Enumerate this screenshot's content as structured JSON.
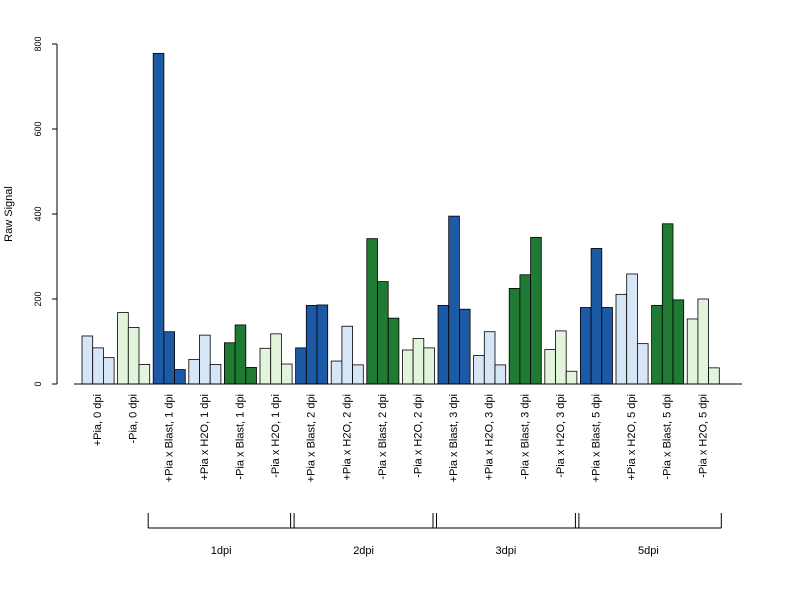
{
  "chart_data": {
    "type": "bar",
    "ylabel": "Raw Signal",
    "xlabel": "",
    "ylim": [
      0,
      800
    ],
    "yticks": [
      0,
      200,
      400,
      600,
      800
    ],
    "categories": [
      "+Pia, 0 dpi",
      "-Pia, 0 dpi",
      "+Pia x Blast, 1 dpi",
      "+Pia x H2O, 1 dpi",
      "-Pia x Blast, 1 dpi",
      "-Pia x H2O, 1 dpi",
      "+Pia x Blast, 2 dpi",
      "+Pia x H2O, 2 dpi",
      "-Pia x Blast, 2 dpi",
      "-Pia x H2O, 2 dpi",
      "+Pia x Blast, 3 dpi",
      "+Pia x H2O, 3 dpi",
      "-Pia x Blast, 3 dpi",
      "-Pia x H2O, 3 dpi",
      "+Pia x Blast, 5 dpi",
      "+Pia x H2O, 5 dpi",
      "-Pia x Blast, 5 dpi",
      "-Pia x H2O, 5 dpi"
    ],
    "replicates": [
      [
        113,
        85,
        62
      ],
      [
        168,
        133,
        46
      ],
      [
        778,
        123,
        34
      ],
      [
        58,
        115,
        46
      ],
      [
        97,
        139,
        39
      ],
      [
        84,
        118,
        47
      ],
      [
        85,
        185,
        186
      ],
      [
        54,
        136,
        45
      ],
      [
        342,
        241,
        155
      ],
      [
        80,
        107,
        85
      ],
      [
        185,
        395,
        176
      ],
      [
        67,
        123,
        45
      ],
      [
        225,
        257,
        345
      ],
      [
        81,
        125,
        30
      ],
      [
        180,
        319,
        180
      ],
      [
        211,
        259,
        95
      ],
      [
        185,
        377,
        198
      ],
      [
        153,
        200,
        38
      ]
    ],
    "bar_colors": [
      "#d6e6f7",
      "#e2f5dc",
      "#1c5aa6",
      "#d6e6f7",
      "#1f7a34",
      "#e2f5dc",
      "#1c5aa6",
      "#d6e6f7",
      "#1f7a34",
      "#e2f5dc",
      "#1c5aa6",
      "#d6e6f7",
      "#1f7a34",
      "#e2f5dc",
      "#1c5aa6",
      "#d6e6f7",
      "#1f7a34",
      "#e2f5dc"
    ],
    "groups": [
      {
        "label": "1dpi",
        "from": 2,
        "to": 5
      },
      {
        "label": "2dpi",
        "from": 6,
        "to": 9
      },
      {
        "label": "3dpi",
        "from": 10,
        "to": 13
      },
      {
        "label": "5dpi",
        "from": 14,
        "to": 17
      }
    ],
    "grid": false
  }
}
